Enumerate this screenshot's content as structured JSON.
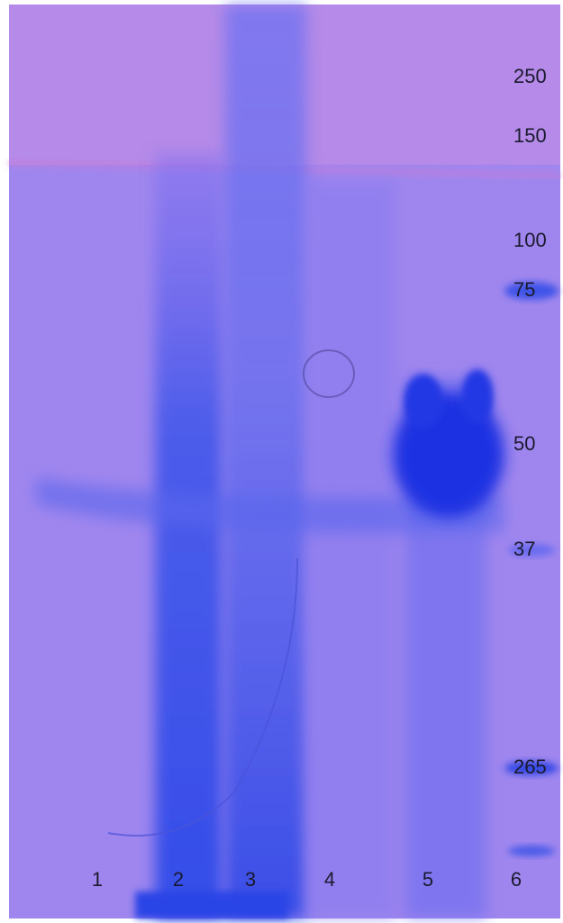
{
  "markers": [
    "250",
    "150",
    "100",
    "75",
    "50",
    "37",
    "265"
  ],
  "lanes": [
    "1",
    "2",
    "3",
    "4",
    "5",
    "6"
  ]
}
